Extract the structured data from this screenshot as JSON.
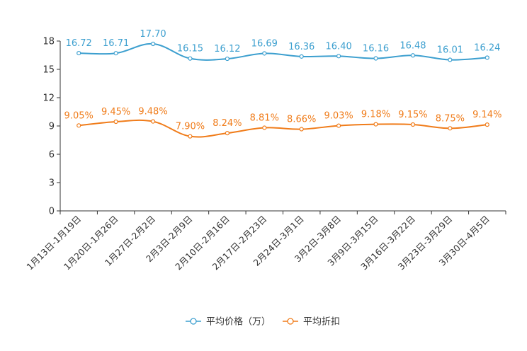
{
  "chart_data": {
    "type": "line",
    "title": "",
    "xlabel": "",
    "ylabel": "",
    "ylim": [
      0,
      18
    ],
    "yticks": [
      0,
      3,
      6,
      9,
      12,
      15,
      18
    ],
    "grid": false,
    "legend_position": "bottom-center",
    "categories": [
      "1月13日-1月19日",
      "1月20日-1月26日",
      "1月27日-2月2日",
      "2月3日-2月9日",
      "2月10日-2月16日",
      "2月17日-2月23日",
      "2月24日-3月1日",
      "3月2日-3月8日",
      "3月9日-3月15日",
      "3月16日-3月22日",
      "3月23日-3月29日",
      "3月30日-4月5日"
    ],
    "series": [
      {
        "name": "平均价格（万）",
        "color": "#3c9fcf",
        "values": [
          16.72,
          16.71,
          17.7,
          16.15,
          16.12,
          16.69,
          16.36,
          16.4,
          16.16,
          16.48,
          16.01,
          16.24
        ],
        "labels": [
          "16.72",
          "16.71",
          "17.70",
          "16.15",
          "16.12",
          "16.69",
          "16.36",
          "16.40",
          "16.16",
          "16.48",
          "16.01",
          "16.24"
        ]
      },
      {
        "name": "平均折扣",
        "color": "#f07c1a",
        "values": [
          9.05,
          9.45,
          9.48,
          7.9,
          8.24,
          8.81,
          8.66,
          9.03,
          9.18,
          9.15,
          8.75,
          9.14
        ],
        "labels": [
          "9.05%",
          "9.45%",
          "9.48%",
          "7.90%",
          "8.24%",
          "8.81%",
          "8.66%",
          "9.03%",
          "9.18%",
          "9.15%",
          "8.75%",
          "9.14%"
        ]
      }
    ]
  }
}
